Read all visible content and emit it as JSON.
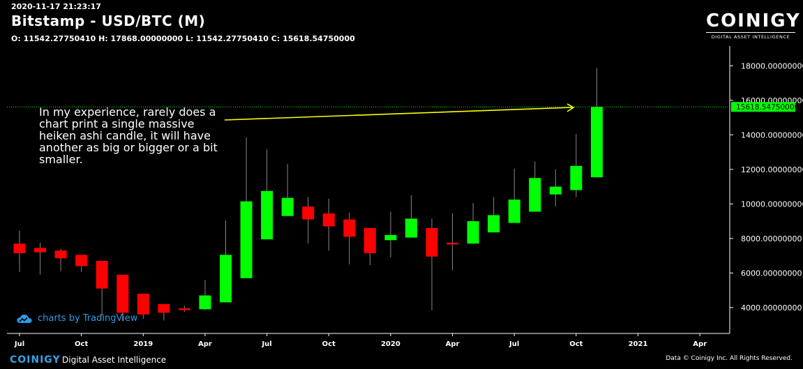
{
  "header": {
    "timestamp": "2020-11-17 21:23:17",
    "title": "Bitstamp - USD/BTC (M)",
    "ohlc": "O: 11542.27750410 H: 17868.00000000 L: 11542.27750410 C: 15618.54750000"
  },
  "logo": {
    "word": "COINIGY",
    "tagline": "DIGITAL ASSET INTELLIGENCE"
  },
  "annotation": "In my experience, rarely does a chart print a single massive heiken ashi candle, it will have another as big or bigger or a bit smaller.",
  "tradingview": {
    "label": "charts by TradingView"
  },
  "footer": {
    "logo": "COINIGY",
    "tagline": "Digital Asset Intelligence",
    "copyright": "Data © Coinigy Inc.  All Rights Reserved."
  },
  "colors": {
    "up": "#00ff00",
    "down": "#ff0000",
    "price_line": "#00ff00",
    "arrow": "#ffff00",
    "axis": "#ffffff"
  },
  "chart_data": {
    "type": "candlestick",
    "subtype": "heikin-ashi",
    "ylim": [
      2500,
      18900
    ],
    "y_ticks": [
      4000,
      6000,
      8000,
      10000,
      12000,
      14000,
      16000,
      18000
    ],
    "y_tick_labels": [
      "4000.00000000",
      "6000.00000000",
      "8000.00000000",
      "10000.00000000",
      "12000.00000000",
      "14000.00000000",
      "16000.00000000",
      "18000.00000000"
    ],
    "x_ticks": [
      {
        "label": "Jul",
        "month": "2018-07"
      },
      {
        "label": "Oct",
        "month": "2018-10"
      },
      {
        "label": "2019",
        "month": "2019-01"
      },
      {
        "label": "Apr",
        "month": "2019-04"
      },
      {
        "label": "Jul",
        "month": "2019-07"
      },
      {
        "label": "Oct",
        "month": "2019-10"
      },
      {
        "label": "2020",
        "month": "2020-01"
      },
      {
        "label": "Apr",
        "month": "2020-04"
      },
      {
        "label": "Jul",
        "month": "2020-07"
      },
      {
        "label": "Oct",
        "month": "2020-10"
      },
      {
        "label": "2021",
        "month": "2021-01"
      },
      {
        "label": "Apr",
        "month": "2021-04"
      }
    ],
    "last_price": 15618.5475,
    "last_price_label": "15618.54750000",
    "candles": [
      {
        "month": "2018-07",
        "open": 7700,
        "close": 7150,
        "high": 8450,
        "low": 6050
      },
      {
        "month": "2018-08",
        "open": 7450,
        "close": 7200,
        "high": 7750,
        "low": 5900
      },
      {
        "month": "2018-09",
        "open": 7300,
        "close": 6850,
        "high": 7400,
        "low": 6100
      },
      {
        "month": "2018-10",
        "open": 7050,
        "close": 6400,
        "high": 7000,
        "low": 6050
      },
      {
        "month": "2018-11",
        "open": 6700,
        "close": 5100,
        "high": 6700,
        "low": 3500
      },
      {
        "month": "2018-12",
        "open": 5900,
        "close": 3700,
        "high": 5900,
        "low": 3200
      },
      {
        "month": "2019-01",
        "open": 4800,
        "close": 3600,
        "high": 4800,
        "low": 3350
      },
      {
        "month": "2019-02",
        "open": 4200,
        "close": 3700,
        "high": 4200,
        "low": 3250
      },
      {
        "month": "2019-03",
        "open": 3950,
        "close": 3850,
        "high": 4100,
        "low": 3750
      },
      {
        "month": "2019-04",
        "open": 3900,
        "close": 4700,
        "high": 5600,
        "low": 3850
      },
      {
        "month": "2019-05",
        "open": 4300,
        "close": 7050,
        "high": 9050,
        "low": 4300
      },
      {
        "month": "2019-06",
        "open": 5700,
        "close": 10150,
        "high": 13850,
        "low": 5700
      },
      {
        "month": "2019-07",
        "open": 7950,
        "close": 10750,
        "high": 13150,
        "low": 7950
      },
      {
        "month": "2019-08",
        "open": 9300,
        "close": 10350,
        "high": 12300,
        "low": 9300
      },
      {
        "month": "2019-09",
        "open": 9850,
        "close": 9100,
        "high": 10400,
        "low": 7700
      },
      {
        "month": "2019-10",
        "open": 9450,
        "close": 8700,
        "high": 10300,
        "low": 7300
      },
      {
        "month": "2019-11",
        "open": 9100,
        "close": 8100,
        "high": 9500,
        "low": 6500
      },
      {
        "month": "2019-12",
        "open": 8600,
        "close": 7150,
        "high": 8600,
        "low": 6450
      },
      {
        "month": "2020-01",
        "open": 7900,
        "close": 8200,
        "high": 9550,
        "low": 6900
      },
      {
        "month": "2020-02",
        "open": 8050,
        "close": 9150,
        "high": 10500,
        "low": 8050
      },
      {
        "month": "2020-03",
        "open": 8600,
        "close": 6950,
        "high": 9150,
        "low": 3850
      },
      {
        "month": "2020-04",
        "open": 7750,
        "close": 7650,
        "high": 9450,
        "low": 6150
      },
      {
        "month": "2020-05",
        "open": 7700,
        "close": 9000,
        "high": 10050,
        "low": 7700
      },
      {
        "month": "2020-06",
        "open": 8350,
        "close": 9350,
        "high": 10400,
        "low": 8350
      },
      {
        "month": "2020-07",
        "open": 8900,
        "close": 10250,
        "high": 12050,
        "low": 8900
      },
      {
        "month": "2020-08",
        "open": 9550,
        "close": 11500,
        "high": 12450,
        "low": 9550
      },
      {
        "month": "2020-09",
        "open": 10550,
        "close": 11000,
        "high": 12000,
        "low": 9850
      },
      {
        "month": "2020-10",
        "open": 10800,
        "close": 12200,
        "high": 14050,
        "low": 10400
      },
      {
        "month": "2020-11",
        "open": 11542.2775041,
        "close": 15618.5475,
        "high": 17868,
        "low": 11542.2775041
      }
    ]
  }
}
